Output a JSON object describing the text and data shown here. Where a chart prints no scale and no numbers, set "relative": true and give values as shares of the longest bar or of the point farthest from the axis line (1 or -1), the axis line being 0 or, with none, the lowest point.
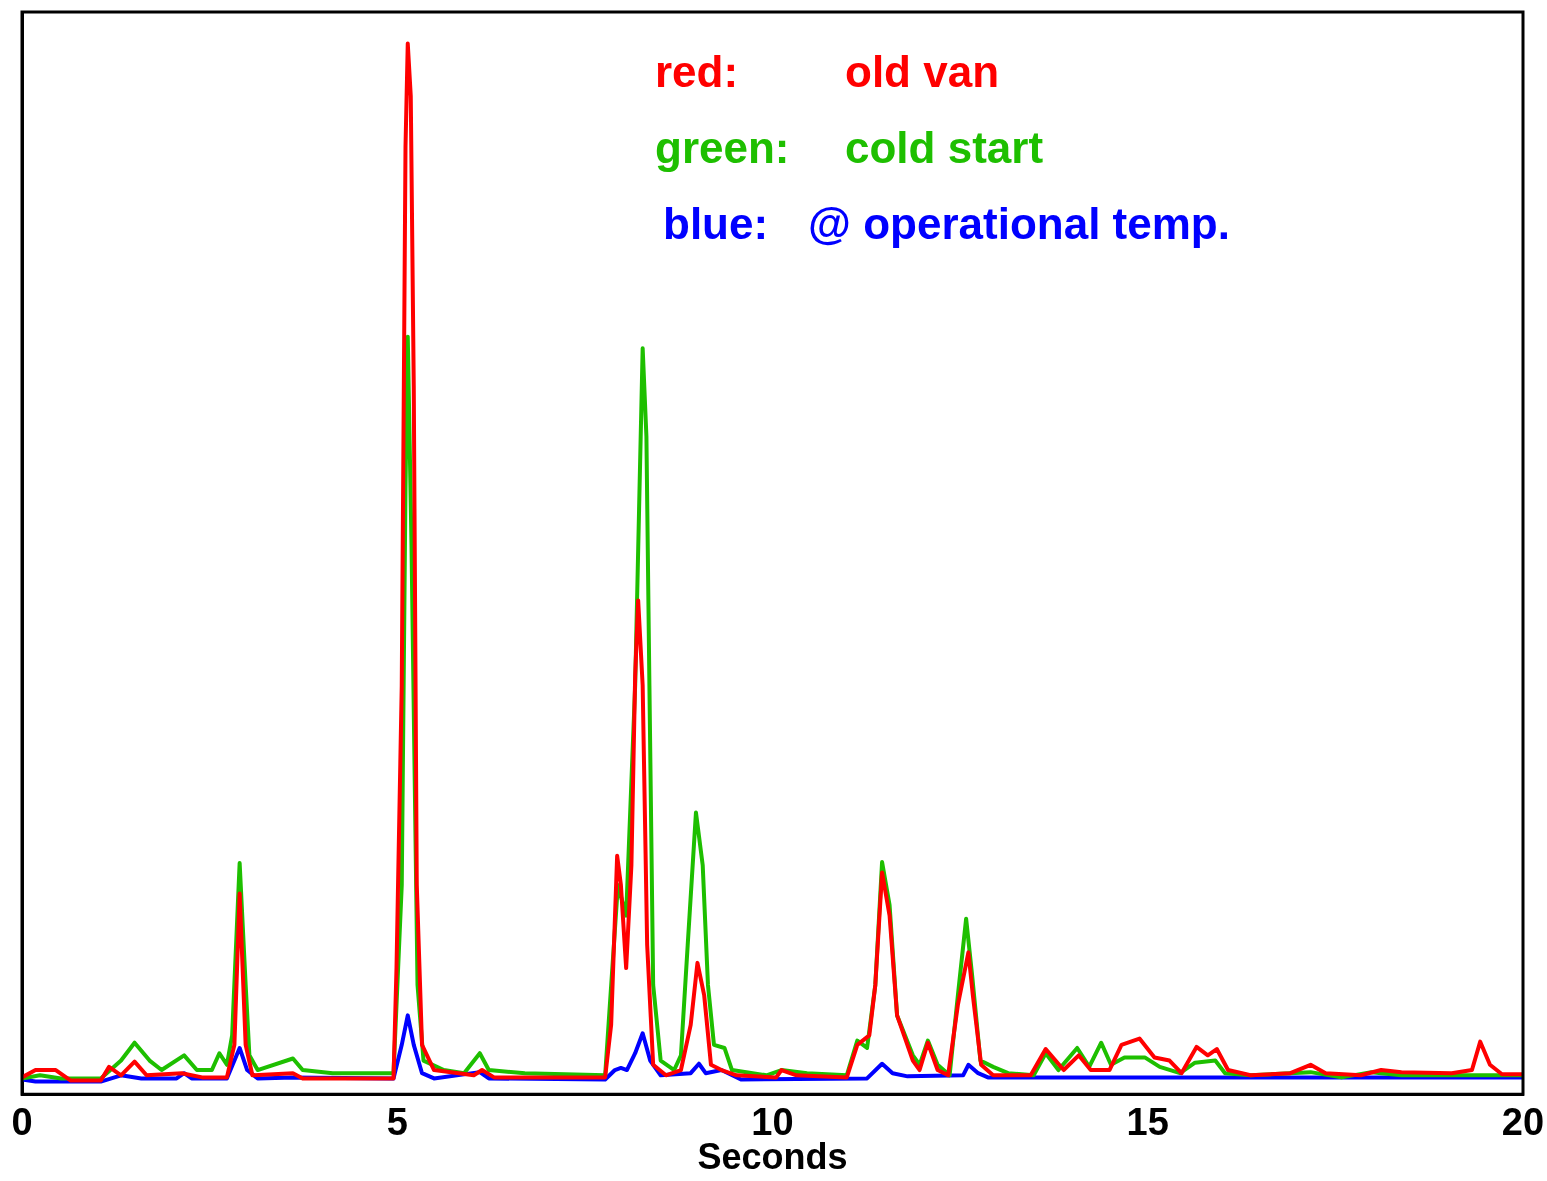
{
  "chart_data": {
    "type": "line",
    "xlabel": "Seconds",
    "xlim": [
      0,
      20
    ],
    "xticks": [
      0,
      5,
      10,
      15,
      20
    ],
    "relative": true,
    "grid": false,
    "legend": "top right",
    "marker": "none",
    "line_style": "solid",
    "annotations": [
      "red:",
      "green:",
      "blue:"
    ],
    "series": [
      {
        "name": "old van",
        "color": "#ff0000",
        "x": [
          0,
          0.18,
          0.45,
          0.65,
          1.05,
          1.16,
          1.32,
          1.5,
          1.66,
          2.13,
          2.4,
          2.73,
          2.83,
          2.9,
          2.98,
          3.07,
          3.61,
          3.74,
          4.95,
          4.99,
          5.06,
          5.11,
          5.14,
          5.18,
          5.22,
          5.26,
          5.33,
          5.49,
          6.02,
          6.13,
          6.29,
          7.77,
          7.85,
          7.93,
          7.98,
          8.05,
          8.12,
          8.17,
          8.21,
          8.27,
          8.33,
          8.41,
          8.58,
          8.78,
          8.91,
          9.0,
          9.09,
          9.18,
          9.32,
          9.52,
          10.05,
          10.12,
          10.32,
          10.99,
          11.13,
          11.29,
          11.37,
          11.46,
          11.56,
          11.66,
          11.87,
          11.96,
          12.07,
          12.2,
          12.34,
          12.47,
          12.61,
          12.67,
          12.78,
          12.94,
          13.14,
          13.44,
          13.64,
          13.88,
          14.08,
          14.24,
          14.49,
          14.65,
          14.89,
          15.09,
          15.29,
          15.45,
          15.65,
          15.8,
          15.92,
          16.07,
          16.37,
          16.9,
          17.17,
          17.37,
          17.84,
          18.11,
          18.38,
          19.05,
          19.32,
          19.43,
          19.56,
          19.72,
          20
        ],
        "values": [
          0.016,
          0.023,
          0.023,
          0.013,
          0.013,
          0.026,
          0.018,
          0.031,
          0.018,
          0.02,
          0.016,
          0.016,
          0.047,
          0.191,
          0.047,
          0.018,
          0.02,
          0.015,
          0.015,
          0.12,
          0.389,
          0.902,
          1,
          0.95,
          0.674,
          0.199,
          0.047,
          0.023,
          0.018,
          0.023,
          0.016,
          0.016,
          0.066,
          0.227,
          0.199,
          0.12,
          0.218,
          0.398,
          0.47,
          0.389,
          0.142,
          0.028,
          0.018,
          0.023,
          0.066,
          0.125,
          0.094,
          0.028,
          0.023,
          0.018,
          0.016,
          0.023,
          0.018,
          0.016,
          0.047,
          0.056,
          0.104,
          0.211,
          0.17,
          0.075,
          0.032,
          0.023,
          0.049,
          0.023,
          0.018,
          0.085,
          0.135,
          0.094,
          0.028,
          0.018,
          0.018,
          0.018,
          0.043,
          0.023,
          0.037,
          0.023,
          0.023,
          0.047,
          0.053,
          0.035,
          0.032,
          0.02,
          0.045,
          0.037,
          0.043,
          0.023,
          0.018,
          0.02,
          0.028,
          0.02,
          0.018,
          0.023,
          0.021,
          0.02,
          0.023,
          0.05,
          0.028,
          0.019,
          0.019
        ]
      },
      {
        "name": "cold start",
        "color": "#1ebf00",
        "x": [
          0,
          0.24,
          0.52,
          1.05,
          1.32,
          1.5,
          1.7,
          1.86,
          2.16,
          2.33,
          2.53,
          2.63,
          2.73,
          2.8,
          2.9,
          2.98,
          3.03,
          3.14,
          3.61,
          3.74,
          4.14,
          4.95,
          5.06,
          5.11,
          5.14,
          5.19,
          5.27,
          5.35,
          5.62,
          5.89,
          6.1,
          6.22,
          6.7,
          7.77,
          7.94,
          8.05,
          8.17,
          8.27,
          8.32,
          8.36,
          8.41,
          8.51,
          8.69,
          8.78,
          8.87,
          8.98,
          9.07,
          9.14,
          9.22,
          9.36,
          9.46,
          9.92,
          10.12,
          10.46,
          10.99,
          11.13,
          11.26,
          11.37,
          11.46,
          11.56,
          11.66,
          11.87,
          11.96,
          12.07,
          12.2,
          12.36,
          12.47,
          12.58,
          12.66,
          12.77,
          12.94,
          13.14,
          13.48,
          13.64,
          13.81,
          14.06,
          14.22,
          14.38,
          14.51,
          14.69,
          14.96,
          15.16,
          15.43,
          15.63,
          15.9,
          16.03,
          16.37,
          17.17,
          17.58,
          17.98,
          18.38,
          19.32,
          20
        ],
        "values": [
          0.015,
          0.018,
          0.015,
          0.015,
          0.032,
          0.049,
          0.032,
          0.023,
          0.037,
          0.023,
          0.023,
          0.039,
          0.028,
          0.056,
          0.22,
          0.104,
          0.037,
          0.023,
          0.034,
          0.023,
          0.02,
          0.02,
          0.199,
          0.579,
          0.721,
          0.522,
          0.104,
          0.032,
          0.023,
          0.02,
          0.039,
          0.023,
          0.02,
          0.018,
          0.199,
          0.17,
          0.389,
          0.71,
          0.626,
          0.389,
          0.104,
          0.032,
          0.023,
          0.037,
          0.142,
          0.268,
          0.218,
          0.104,
          0.047,
          0.044,
          0.023,
          0.018,
          0.023,
          0.02,
          0.018,
          0.051,
          0.044,
          0.104,
          0.221,
          0.18,
          0.075,
          0.037,
          0.028,
          0.051,
          0.028,
          0.018,
          0.094,
          0.167,
          0.113,
          0.032,
          0.026,
          0.02,
          0.018,
          0.039,
          0.023,
          0.044,
          0.026,
          0.049,
          0.028,
          0.035,
          0.035,
          0.026,
          0.02,
          0.03,
          0.032,
          0.02,
          0.018,
          0.021,
          0.016,
          0.021,
          0.018,
          0.018,
          0.018
        ]
      },
      {
        "name": "@ operational temp.",
        "color": "#0000ff",
        "x": [
          0,
          0.18,
          1.05,
          1.32,
          1.59,
          2.06,
          2.16,
          2.26,
          2.73,
          2.9,
          3.0,
          3.14,
          3.61,
          4.95,
          5.06,
          5.14,
          5.22,
          5.33,
          5.49,
          6.1,
          6.22,
          7.77,
          7.9,
          7.98,
          8.06,
          8.17,
          8.27,
          8.37,
          8.51,
          8.91,
          9.02,
          9.11,
          9.32,
          9.58,
          11.26,
          11.46,
          11.6,
          11.8,
          12.54,
          12.61,
          12.74,
          12.87,
          20
        ],
        "values": [
          0.014,
          0.012,
          0.012,
          0.018,
          0.015,
          0.015,
          0.02,
          0.015,
          0.015,
          0.044,
          0.023,
          0.015,
          0.016,
          0.015,
          0.047,
          0.075,
          0.047,
          0.02,
          0.015,
          0.021,
          0.015,
          0.014,
          0.023,
          0.025,
          0.023,
          0.039,
          0.058,
          0.032,
          0.018,
          0.02,
          0.029,
          0.02,
          0.023,
          0.014,
          0.015,
          0.029,
          0.02,
          0.017,
          0.018,
          0.028,
          0.02,
          0.016,
          0.016
        ]
      }
    ]
  }
}
